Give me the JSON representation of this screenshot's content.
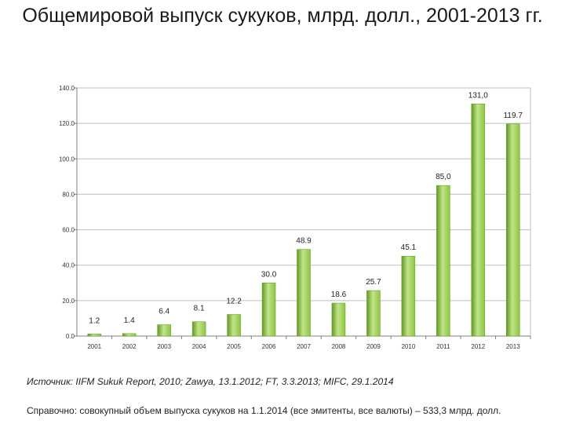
{
  "title": "Общемировой выпуск сукуков, млрд. долл., 2001-2013 гг.",
  "source": "Источник: IIFM Sukuk Report, 2010; Zawya, 13.1.2012; FT, 3.3.2013; MIFC, 29.1.2014",
  "note": "Справочно: совокупный объем выпуска сукуков на 1.1.2014 (все эмитенты, все валюты) – 533,3 млрд. долл.",
  "colors": {
    "bar": "#8cc63f",
    "bar_dark": "#5f9a1f",
    "bar_light": "#c2e48a",
    "axis": "#808080",
    "grid": "#bfbfbf"
  },
  "chart_data": {
    "type": "bar",
    "categories": [
      "2001",
      "2002",
      "2003",
      "2004",
      "2005",
      "2006",
      "2007",
      "2008",
      "2009",
      "2010",
      "2011",
      "2012",
      "2013"
    ],
    "values": [
      1.2,
      1.4,
      6.4,
      8.1,
      12.2,
      30.0,
      48.9,
      18.6,
      25.7,
      45.1,
      85.0,
      131.0,
      119.7
    ],
    "data_labels": [
      "1.2",
      "1.4",
      "6.4",
      "8.1",
      "12.2",
      "30.0",
      "48.9",
      "18.6",
      "25.7",
      "45.1",
      "85,0",
      "131,0",
      "119.7"
    ],
    "y_ticks": [
      "0.0",
      "20.0",
      "40.0",
      "60.0",
      "80.0",
      "100.0",
      "120.0",
      "140.0"
    ],
    "ylim": [
      0,
      140
    ],
    "grid": true,
    "legend": "none"
  }
}
